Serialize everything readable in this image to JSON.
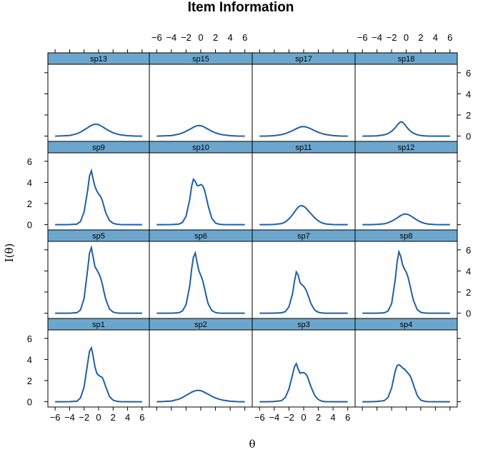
{
  "chart_data": {
    "type": "line",
    "title": "Item Information",
    "xlabel": "θ",
    "ylabel": "I(θ)",
    "xlim": [
      -7,
      7
    ],
    "ylim": [
      -0.5,
      6.8
    ],
    "xticks": [
      -6,
      -4,
      -2,
      0,
      2,
      4,
      6
    ],
    "yticks": [
      0,
      2,
      4,
      6
    ],
    "xtick_labels": [
      "−6",
      "−4",
      "−2",
      "0",
      "2",
      "4",
      "6"
    ],
    "ytick_labels": [
      "0",
      "2",
      "4",
      "6"
    ],
    "line_color": "#1f5fa8",
    "strip_color": "#6ca6cd",
    "grid": false,
    "layout_rows": [
      [
        "sp13",
        "sp15",
        "sp17",
        "sp18"
      ],
      [
        "sp9",
        "sp10",
        "sp11",
        "sp12"
      ],
      [
        "sp5",
        "sp6",
        "sp7",
        "sp8"
      ],
      [
        "sp1",
        "sp2",
        "sp3",
        "sp4"
      ]
    ],
    "x": [
      -6,
      -5,
      -4,
      -3,
      -2.5,
      -2,
      -1.5,
      -1.25,
      -1,
      -0.75,
      -0.5,
      -0.25,
      0,
      0.25,
      0.5,
      0.75,
      1,
      1.5,
      2,
      2.5,
      3,
      4,
      5,
      6
    ],
    "series": [
      {
        "name": "sp13",
        "values": [
          0.0,
          0.02,
          0.06,
          0.22,
          0.38,
          0.58,
          0.8,
          0.91,
          1.01,
          1.08,
          1.12,
          1.12,
          1.08,
          1.0,
          0.9,
          0.79,
          0.68,
          0.48,
          0.32,
          0.2,
          0.12,
          0.04,
          0.01,
          0.0
        ]
      },
      {
        "name": "sp15",
        "values": [
          0.0,
          0.02,
          0.05,
          0.18,
          0.3,
          0.46,
          0.64,
          0.74,
          0.84,
          0.92,
          0.98,
          1.0,
          0.98,
          0.93,
          0.85,
          0.75,
          0.65,
          0.46,
          0.31,
          0.2,
          0.12,
          0.04,
          0.01,
          0.0
        ]
      },
      {
        "name": "sp17",
        "values": [
          0.0,
          0.01,
          0.04,
          0.14,
          0.24,
          0.37,
          0.52,
          0.61,
          0.7,
          0.78,
          0.85,
          0.89,
          0.9,
          0.88,
          0.83,
          0.76,
          0.68,
          0.51,
          0.36,
          0.24,
          0.15,
          0.05,
          0.01,
          0.0
        ]
      },
      {
        "name": "sp18",
        "values": [
          0.0,
          0.01,
          0.03,
          0.12,
          0.24,
          0.46,
          0.8,
          1.02,
          1.22,
          1.35,
          1.32,
          1.15,
          0.92,
          0.7,
          0.52,
          0.38,
          0.27,
          0.13,
          0.06,
          0.03,
          0.01,
          0.0,
          0.0,
          0.0
        ]
      },
      {
        "name": "sp9",
        "values": [
          0.0,
          0.0,
          0.01,
          0.05,
          0.3,
          1.2,
          3.3,
          4.6,
          5.1,
          4.3,
          3.6,
          3.2,
          2.9,
          2.7,
          2.3,
          1.7,
          1.1,
          0.4,
          0.13,
          0.04,
          0.01,
          0.0,
          0.0,
          0.0
        ]
      },
      {
        "name": "sp10",
        "values": [
          0.0,
          0.0,
          0.01,
          0.05,
          0.2,
          0.8,
          2.4,
          3.6,
          4.3,
          4.1,
          3.7,
          3.7,
          3.8,
          3.7,
          3.3,
          2.6,
          1.8,
          0.6,
          0.15,
          0.04,
          0.01,
          0.0,
          0.0,
          0.0
        ]
      },
      {
        "name": "sp11",
        "values": [
          0.0,
          0.0,
          0.02,
          0.1,
          0.25,
          0.55,
          0.95,
          1.2,
          1.45,
          1.65,
          1.78,
          1.8,
          1.74,
          1.6,
          1.42,
          1.22,
          1.02,
          0.65,
          0.35,
          0.16,
          0.07,
          0.01,
          0.0,
          0.0
        ]
      },
      {
        "name": "sp12",
        "values": [
          0.0,
          0.0,
          0.02,
          0.08,
          0.18,
          0.33,
          0.52,
          0.63,
          0.75,
          0.86,
          0.95,
          1.0,
          1.0,
          0.96,
          0.88,
          0.77,
          0.65,
          0.43,
          0.25,
          0.13,
          0.06,
          0.01,
          0.0,
          0.0
        ]
      },
      {
        "name": "sp5",
        "values": [
          0.0,
          0.0,
          0.0,
          0.05,
          0.3,
          1.4,
          4.2,
          5.7,
          6.2,
          5.3,
          4.4,
          4.1,
          3.8,
          3.4,
          2.8,
          2.0,
          1.3,
          0.4,
          0.1,
          0.02,
          0.0,
          0.0,
          0.0,
          0.0
        ]
      },
      {
        "name": "sp6",
        "values": [
          0.0,
          0.0,
          0.0,
          0.04,
          0.2,
          0.8,
          2.6,
          4.1,
          5.3,
          5.7,
          4.8,
          4.0,
          3.6,
          3.1,
          2.4,
          1.6,
          0.9,
          0.25,
          0.06,
          0.01,
          0.0,
          0.0,
          0.0,
          0.0
        ]
      },
      {
        "name": "sp7",
        "values": [
          0.0,
          0.0,
          0.01,
          0.04,
          0.15,
          0.6,
          1.9,
          3.0,
          3.9,
          3.6,
          2.9,
          2.7,
          2.55,
          2.3,
          1.9,
          1.4,
          0.9,
          0.3,
          0.08,
          0.02,
          0.0,
          0.0,
          0.0,
          0.0
        ]
      },
      {
        "name": "sp8",
        "values": [
          0.0,
          0.0,
          0.0,
          0.04,
          0.2,
          0.9,
          3.2,
          4.8,
          5.8,
          5.4,
          4.6,
          4.2,
          3.9,
          3.4,
          2.7,
          1.9,
          1.2,
          0.35,
          0.08,
          0.02,
          0.0,
          0.0,
          0.0,
          0.0
        ]
      },
      {
        "name": "sp1",
        "values": [
          0.0,
          0.0,
          0.01,
          0.05,
          0.35,
          1.4,
          3.7,
          4.8,
          5.1,
          4.3,
          3.3,
          2.7,
          2.5,
          2.4,
          2.3,
          1.9,
          1.4,
          0.5,
          0.15,
          0.04,
          0.01,
          0.0,
          0.0,
          0.0
        ]
      },
      {
        "name": "sp2",
        "values": [
          0.0,
          0.02,
          0.07,
          0.24,
          0.4,
          0.6,
          0.8,
          0.9,
          0.98,
          1.04,
          1.07,
          1.07,
          1.04,
          0.98,
          0.9,
          0.8,
          0.71,
          0.52,
          0.36,
          0.24,
          0.15,
          0.05,
          0.01,
          0.0
        ]
      },
      {
        "name": "sp3",
        "values": [
          0.0,
          0.0,
          0.02,
          0.1,
          0.4,
          1.2,
          2.6,
          3.3,
          3.6,
          3.1,
          2.7,
          2.75,
          2.75,
          2.65,
          2.4,
          1.9,
          1.4,
          0.6,
          0.2,
          0.05,
          0.01,
          0.0,
          0.0,
          0.0
        ]
      },
      {
        "name": "sp4",
        "values": [
          0.0,
          0.0,
          0.02,
          0.1,
          0.4,
          1.3,
          2.9,
          3.4,
          3.5,
          3.4,
          3.2,
          3.1,
          2.9,
          2.7,
          2.5,
          2.1,
          1.6,
          0.6,
          0.15,
          0.04,
          0.01,
          0.0,
          0.0,
          0.0
        ]
      }
    ]
  }
}
